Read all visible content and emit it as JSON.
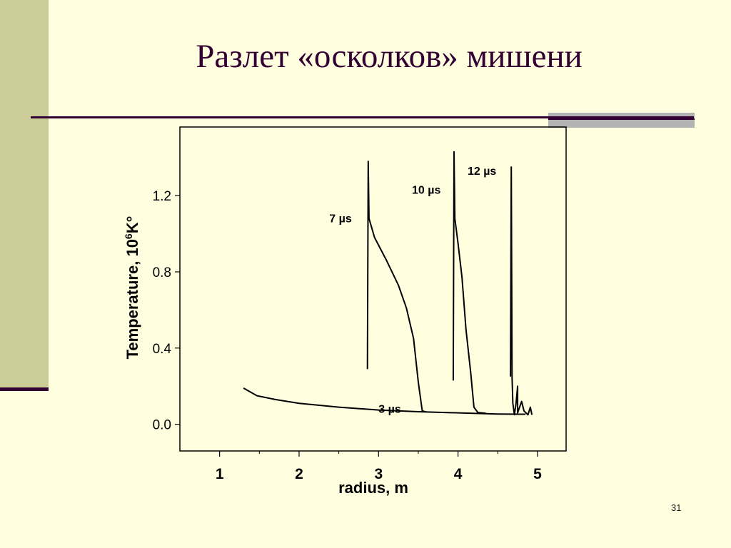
{
  "slide": {
    "title": "Разлет «осколков» мишени",
    "page_number": "31"
  },
  "chart_data": {
    "type": "line",
    "xlabel": "radius, m",
    "ylabel": "Temperature, 10⁶K°",
    "ylabel_parts": {
      "base": "Temperature, 10",
      "sup": "6",
      "suffix": "K°"
    },
    "xlim": [
      0.5,
      5.36
    ],
    "ylim": [
      -0.14,
      1.56
    ],
    "x_ticks": [
      1,
      2,
      3,
      4,
      5
    ],
    "y_ticks": [
      0.0,
      0.4,
      0.8,
      1.2
    ],
    "y_tick_labels": [
      "0.0",
      "0.4",
      "0.8",
      "1.2"
    ],
    "grid": false,
    "series": [
      {
        "name": "3 µs",
        "label_at": [
          3.0,
          0.06
        ],
        "points": [
          [
            1.3,
            0.19
          ],
          [
            1.47,
            0.15
          ],
          [
            1.7,
            0.13
          ],
          [
            2.0,
            0.11
          ],
          [
            2.5,
            0.09
          ],
          [
            3.0,
            0.075
          ],
          [
            3.5,
            0.066
          ],
          [
            4.0,
            0.06
          ],
          [
            4.5,
            0.054
          ],
          [
            4.75,
            0.053
          ],
          [
            4.85,
            0.053
          ]
        ]
      },
      {
        "name": "7 µs",
        "label_at": [
          2.38,
          1.06
        ],
        "points": [
          [
            2.86,
            0.29
          ],
          [
            2.87,
            1.38
          ],
          [
            2.88,
            1.08
          ],
          [
            2.95,
            0.98
          ],
          [
            3.1,
            0.86
          ],
          [
            3.25,
            0.73
          ],
          [
            3.35,
            0.61
          ],
          [
            3.44,
            0.45
          ],
          [
            3.5,
            0.22
          ],
          [
            3.55,
            0.07
          ],
          [
            3.6,
            0.065
          ]
        ]
      },
      {
        "name": "10 µs",
        "label_at": [
          3.42,
          1.21
        ],
        "points": [
          [
            3.94,
            0.23
          ],
          [
            3.95,
            1.43
          ],
          [
            3.96,
            1.08
          ],
          [
            4.0,
            0.95
          ],
          [
            4.05,
            0.77
          ],
          [
            4.1,
            0.5
          ],
          [
            4.16,
            0.27
          ],
          [
            4.2,
            0.09
          ],
          [
            4.25,
            0.062
          ],
          [
            4.35,
            0.058
          ]
        ]
      },
      {
        "name": "12 µs",
        "label_at": [
          4.12,
          1.31
        ],
        "points": [
          [
            4.66,
            0.25
          ],
          [
            4.67,
            1.35
          ],
          [
            4.68,
            0.25
          ],
          [
            4.69,
            0.11
          ],
          [
            4.71,
            0.05
          ],
          [
            4.73,
            0.11
          ],
          [
            4.75,
            0.2
          ],
          [
            4.75,
            0.06
          ],
          [
            4.8,
            0.12
          ],
          [
            4.83,
            0.07
          ],
          [
            4.88,
            0.05
          ],
          [
            4.91,
            0.09
          ],
          [
            4.93,
            0.05
          ]
        ]
      }
    ]
  }
}
